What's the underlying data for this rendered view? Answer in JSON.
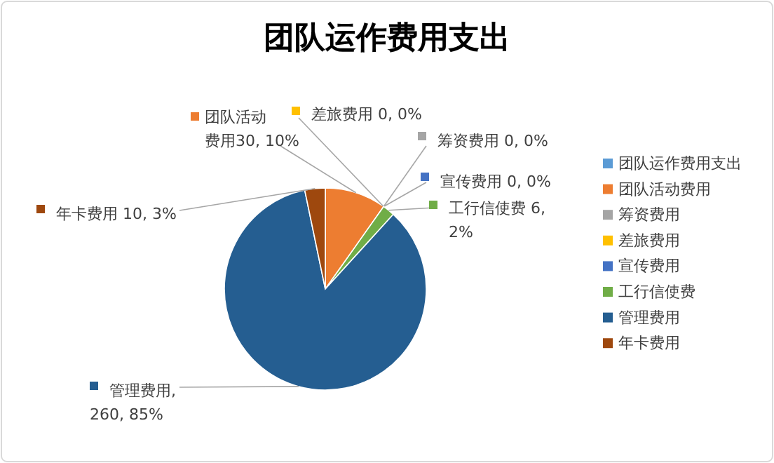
{
  "chart_data": {
    "type": "pie",
    "title": "团队运作费用支出",
    "categories": [
      "团队运作费用支出",
      "团队活动费用",
      "筹资费用",
      "差旅费用",
      "宣传费用",
      "工行信使费",
      "管理费用",
      "年卡费用"
    ],
    "values": [
      null,
      30,
      0,
      0,
      0,
      6,
      260,
      10
    ],
    "colors": [
      "#5b9bd5",
      "#ed7d31",
      "#a5a5a5",
      "#ffc000",
      "#4472c4",
      "#70ad47",
      "#255e91",
      "#9e480e"
    ],
    "value_labels": [
      null,
      "团队活动费用30, 10%",
      "筹资费用 0, 0%",
      "差旅费用 0, 0%",
      "宣传费用 0, 0%",
      "工行信使费 6, 2%",
      "管理费用, 260, 85%",
      "年卡费用 10, 3%"
    ],
    "legend": "right"
  }
}
